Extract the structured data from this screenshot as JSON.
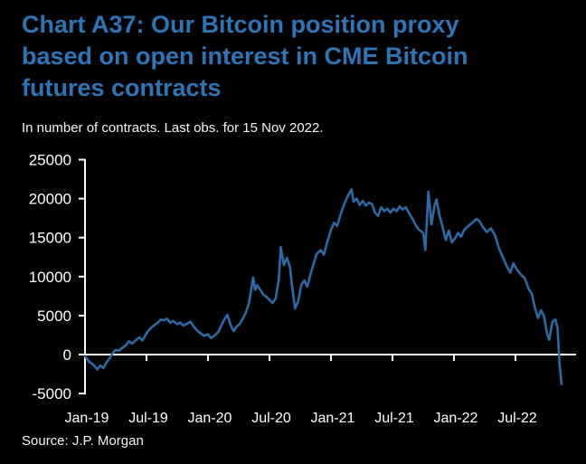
{
  "title": {
    "lines": [
      "Chart A37: Our Bitcoin position proxy",
      "based on open interest in CME Bitcoin",
      "futures contracts"
    ]
  },
  "subtitle": "In number of contracts. Last obs. for 15 Nov 2022.",
  "source": "Source: J.P. Morgan",
  "colors": {
    "background": "#000000",
    "title": "#2E75B6",
    "line": "#2C69A5",
    "axis": "#FFFFFF",
    "label_text": "#FFFFFF"
  },
  "chart_data": {
    "type": "line",
    "title": "Chart A37: Our Bitcoin position proxy based on open interest in CME Bitcoin futures contracts",
    "subtitle": "In number of contracts. Last obs. for 15 Nov 2022.",
    "source": "Source: J.P. Morgan",
    "ylabel": "",
    "xlabel": "",
    "ylim": [
      -5000,
      25000
    ],
    "grid": false,
    "legend_position": "none",
    "y_ticks": [
      25000,
      20000,
      15000,
      10000,
      5000,
      0,
      -5000
    ],
    "x_tick_labels": [
      "Jan-19",
      "Jul-19",
      "Jan-20",
      "Jul-20",
      "Jan-21",
      "Jul-21",
      "Jan-22",
      "Jul-22"
    ],
    "x_unit": "months since Jan-2019",
    "last_observation": "15 Nov 2022",
    "series": [
      {
        "name": "Bitcoin position proxy (number of contracts)",
        "points": [
          [
            0,
            -200
          ],
          [
            0.4,
            -900
          ],
          [
            0.8,
            -1300
          ],
          [
            1.2,
            -1900
          ],
          [
            1.5,
            -1400
          ],
          [
            1.8,
            -1700
          ],
          [
            2.1,
            -1000
          ],
          [
            2.4,
            -500
          ],
          [
            2.7,
            200
          ],
          [
            3,
            600
          ],
          [
            3.3,
            500
          ],
          [
            3.7,
            900
          ],
          [
            4,
            1200
          ],
          [
            4.3,
            1700
          ],
          [
            4.6,
            1400
          ],
          [
            5,
            1900
          ],
          [
            5.3,
            2200
          ],
          [
            5.6,
            1800
          ],
          [
            5.9,
            2500
          ],
          [
            6.2,
            3100
          ],
          [
            6.5,
            3500
          ],
          [
            6.8,
            3800
          ],
          [
            7.1,
            4100
          ],
          [
            7.4,
            4500
          ],
          [
            7.7,
            4400
          ],
          [
            8,
            4600
          ],
          [
            8.3,
            4100
          ],
          [
            8.6,
            4300
          ],
          [
            9,
            3900
          ],
          [
            9.3,
            4100
          ],
          [
            9.6,
            3700
          ],
          [
            10,
            4000
          ],
          [
            10.3,
            4200
          ],
          [
            10.6,
            3600
          ],
          [
            11,
            3000
          ],
          [
            11.3,
            2700
          ],
          [
            11.6,
            2400
          ],
          [
            12,
            2600
          ],
          [
            12.3,
            2100
          ],
          [
            12.6,
            2400
          ],
          [
            13,
            2900
          ],
          [
            13.3,
            3700
          ],
          [
            13.6,
            4500
          ],
          [
            13.9,
            5100
          ],
          [
            14.2,
            3800
          ],
          [
            14.5,
            3000
          ],
          [
            14.8,
            3600
          ],
          [
            15.1,
            3900
          ],
          [
            15.4,
            4600
          ],
          [
            15.7,
            5400
          ],
          [
            16,
            6600
          ],
          [
            16.2,
            8200
          ],
          [
            16.4,
            9900
          ],
          [
            16.6,
            8300
          ],
          [
            16.8,
            8900
          ],
          [
            17.1,
            8300
          ],
          [
            17.4,
            7700
          ],
          [
            17.7,
            7400
          ],
          [
            18,
            7000
          ],
          [
            18.3,
            6600
          ],
          [
            18.6,
            7200
          ],
          [
            18.9,
            9500
          ],
          [
            19.1,
            13800
          ],
          [
            19.4,
            11500
          ],
          [
            19.7,
            12400
          ],
          [
            20,
            11200
          ],
          [
            20.2,
            8800
          ],
          [
            20.5,
            5900
          ],
          [
            20.8,
            6800
          ],
          [
            21.1,
            8900
          ],
          [
            21.4,
            9500
          ],
          [
            21.7,
            8700
          ],
          [
            22,
            10300
          ],
          [
            22.3,
            11600
          ],
          [
            22.6,
            12900
          ],
          [
            23,
            13400
          ],
          [
            23.3,
            12800
          ],
          [
            23.6,
            14300
          ],
          [
            24,
            16000
          ],
          [
            24.3,
            16900
          ],
          [
            24.6,
            16500
          ],
          [
            25,
            18200
          ],
          [
            25.3,
            19300
          ],
          [
            25.6,
            20200
          ],
          [
            26,
            21200
          ],
          [
            26.2,
            19600
          ],
          [
            26.5,
            20000
          ],
          [
            26.8,
            19200
          ],
          [
            27.1,
            19700
          ],
          [
            27.4,
            19100
          ],
          [
            27.7,
            19500
          ],
          [
            28,
            19300
          ],
          [
            28.3,
            18200
          ],
          [
            28.6,
            17800
          ],
          [
            28.9,
            18900
          ],
          [
            29.2,
            18400
          ],
          [
            29.5,
            18700
          ],
          [
            29.8,
            18200
          ],
          [
            30.1,
            18700
          ],
          [
            30.4,
            18400
          ],
          [
            30.7,
            19000
          ],
          [
            31,
            18600
          ],
          [
            31.3,
            18900
          ],
          [
            31.6,
            18200
          ],
          [
            32,
            17300
          ],
          [
            32.3,
            16500
          ],
          [
            32.6,
            16000
          ],
          [
            33,
            15600
          ],
          [
            33.2,
            13400
          ],
          [
            33.5,
            20900
          ],
          [
            33.8,
            16700
          ],
          [
            34.1,
            19100
          ],
          [
            34.3,
            19900
          ],
          [
            34.6,
            17800
          ],
          [
            34.9,
            16300
          ],
          [
            35.2,
            14700
          ],
          [
            35.5,
            15900
          ],
          [
            35.8,
            14400
          ],
          [
            36.1,
            14900
          ],
          [
            36.4,
            15600
          ],
          [
            36.7,
            15100
          ],
          [
            37,
            16000
          ],
          [
            37.4,
            16500
          ],
          [
            37.8,
            16900
          ],
          [
            38.2,
            17400
          ],
          [
            38.5,
            17100
          ],
          [
            38.8,
            16400
          ],
          [
            39.2,
            15700
          ],
          [
            39.6,
            16200
          ],
          [
            40,
            15300
          ],
          [
            40.4,
            13600
          ],
          [
            40.8,
            12400
          ],
          [
            41.2,
            11200
          ],
          [
            41.5,
            10500
          ],
          [
            41.8,
            11700
          ],
          [
            42.1,
            11000
          ],
          [
            42.5,
            10300
          ],
          [
            42.9,
            9800
          ],
          [
            43.3,
            8400
          ],
          [
            43.6,
            7800
          ],
          [
            43.9,
            6000
          ],
          [
            44.2,
            4700
          ],
          [
            44.5,
            5700
          ],
          [
            44.8,
            4900
          ],
          [
            45.1,
            2600
          ],
          [
            45.3,
            1900
          ],
          [
            45.6,
            4200
          ],
          [
            45.9,
            4500
          ],
          [
            46.1,
            3400
          ],
          [
            46.3,
            -1200
          ],
          [
            46.5,
            -3800
          ]
        ]
      }
    ]
  }
}
